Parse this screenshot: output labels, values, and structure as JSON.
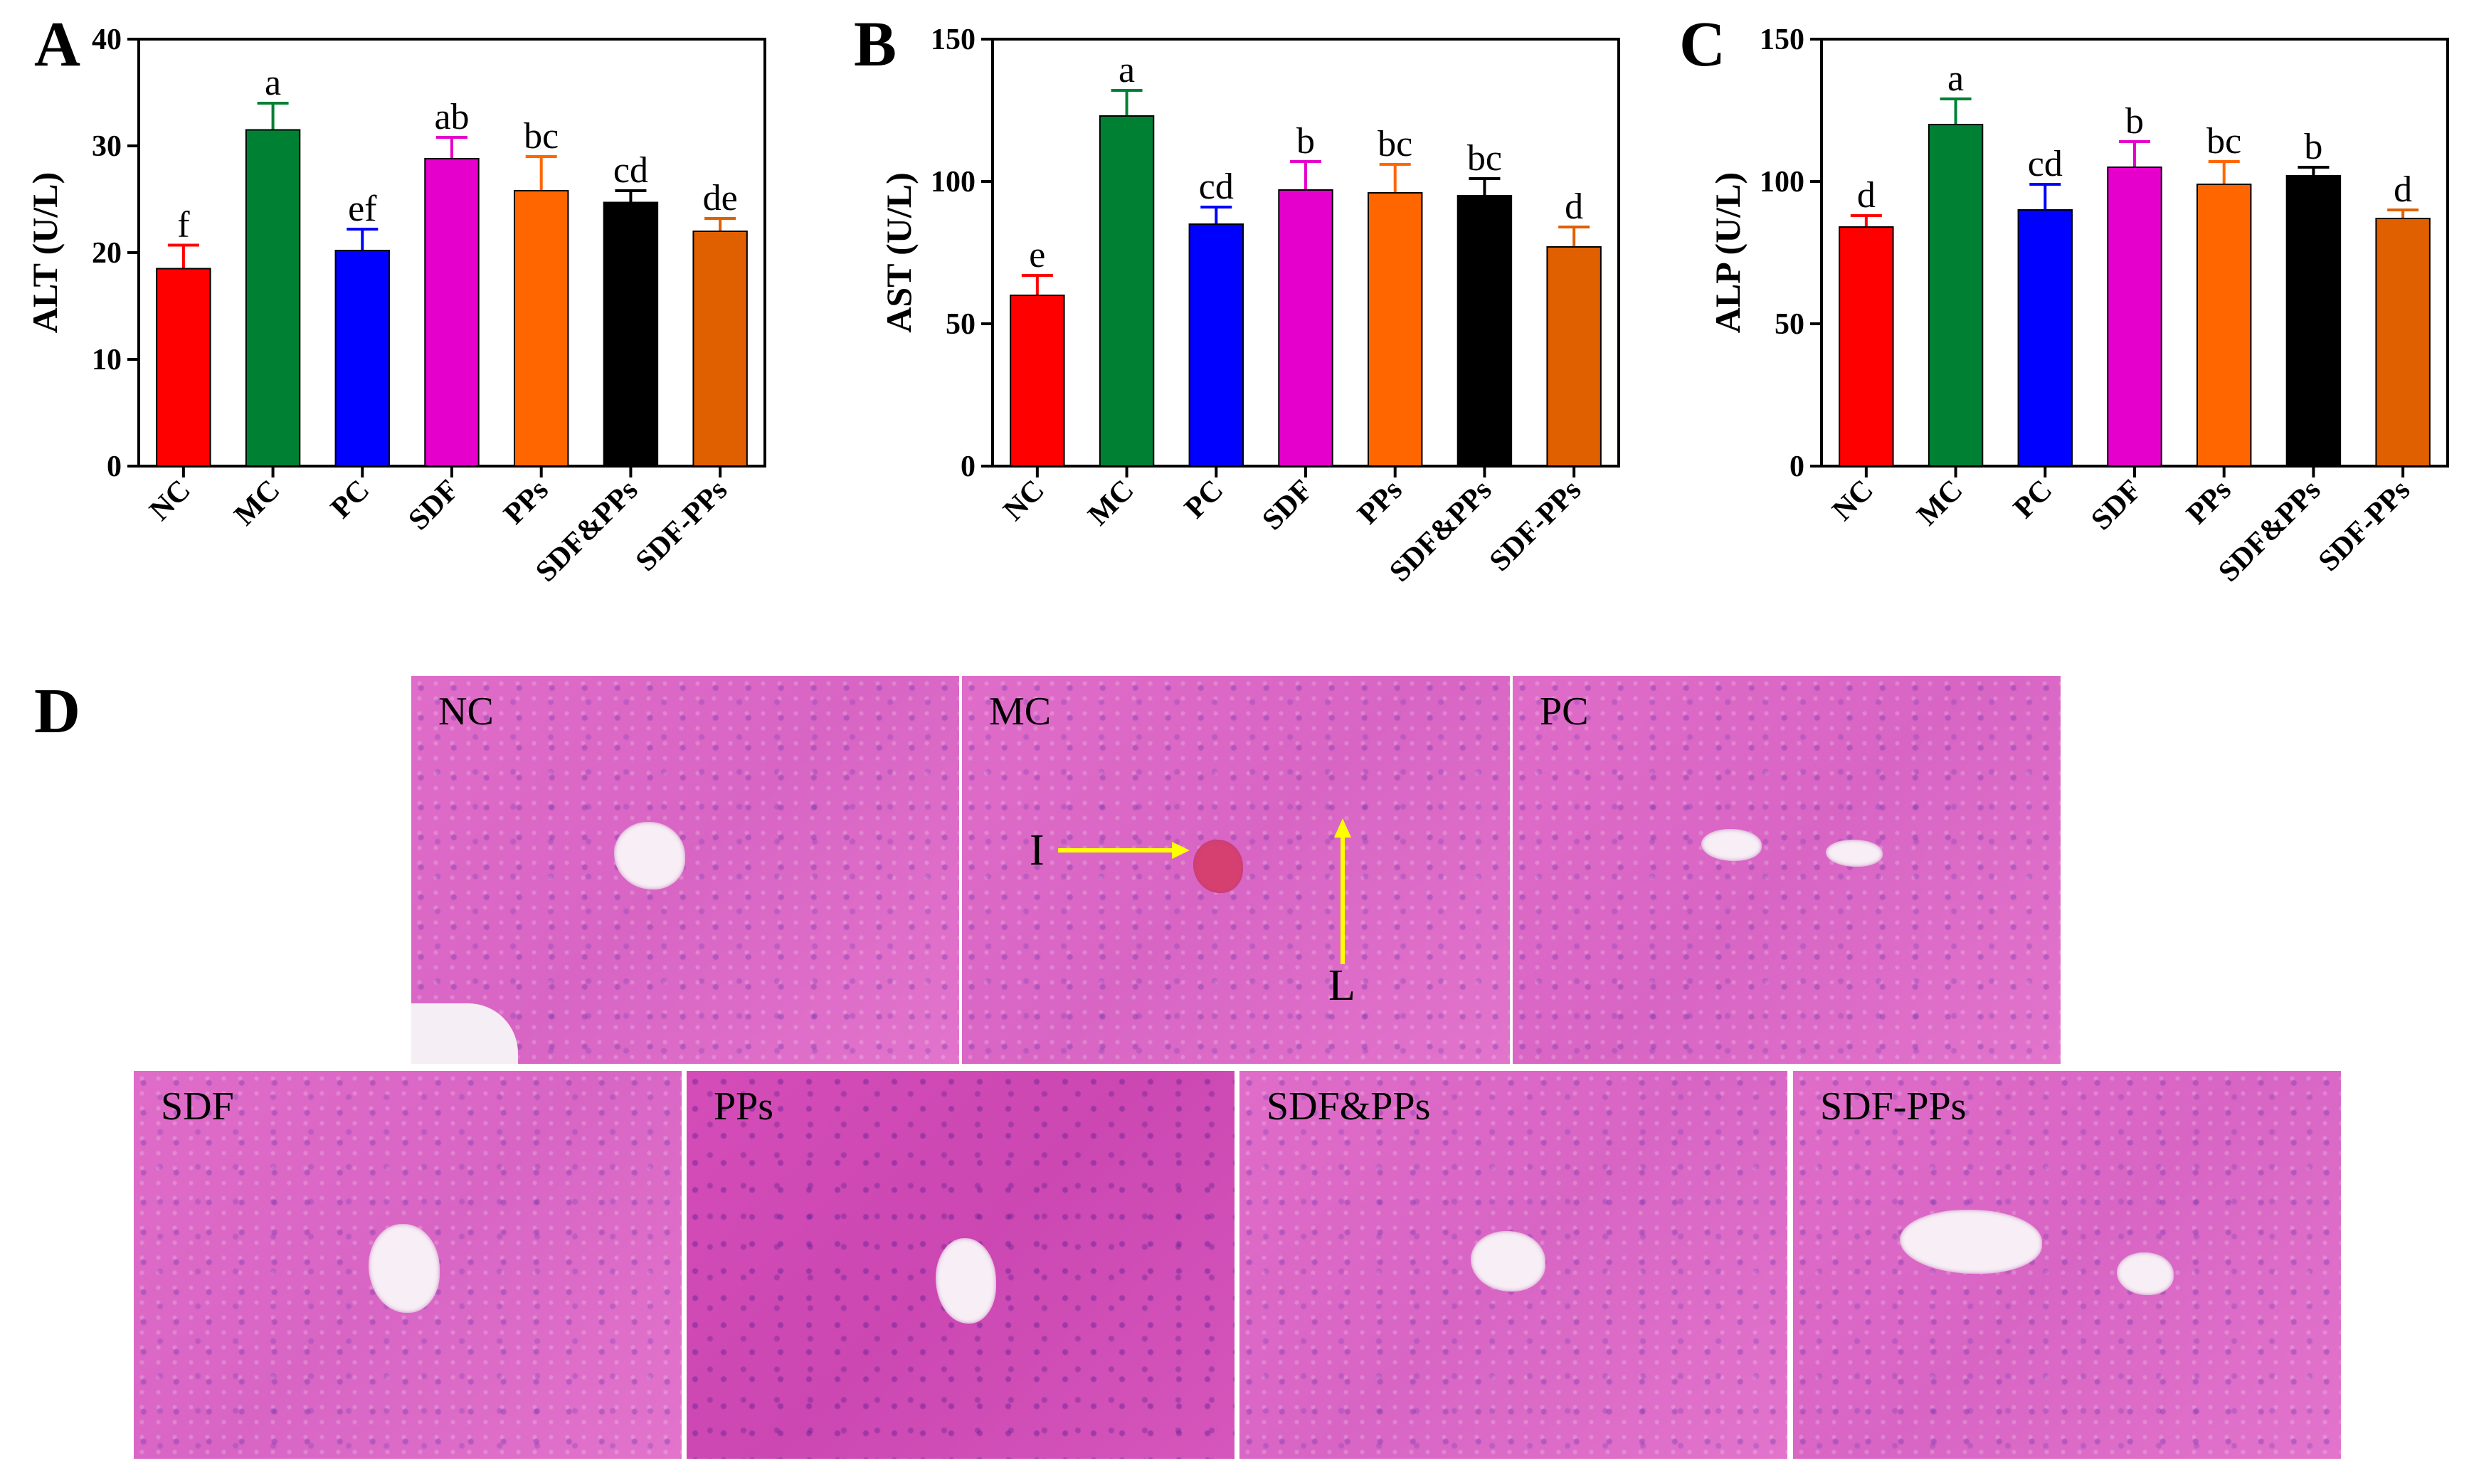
{
  "panel_letters": {
    "a": "A",
    "b": "B",
    "c": "C",
    "d": "D"
  },
  "colors": {
    "NC": "#ff0000",
    "MC": "#008033",
    "PC": "#0000ff",
    "SDF": "#e600cc",
    "PPs": "#ff6600",
    "SDF&PPs": "#000000",
    "SDF-PPs": "#e06000"
  },
  "chart_data": [
    {
      "type": "bar",
      "panel": "A",
      "categories": [
        "NC",
        "MC",
        "PC",
        "SDF",
        "PPs",
        "SDF&PPs",
        "SDF-PPs"
      ],
      "values": [
        18.5,
        31.5,
        20.2,
        28.8,
        25.8,
        24.7,
        22.0
      ],
      "errors": [
        2.2,
        2.5,
        2.0,
        2.0,
        3.2,
        1.1,
        1.2
      ],
      "letters": [
        "f",
        "a",
        "ef",
        "ab",
        "bc",
        "cd",
        "de"
      ],
      "xlabel": "",
      "ylabel": "ALT (U/L)",
      "ylim": [
        0,
        40
      ],
      "yticks": [
        0,
        10,
        20,
        30,
        40
      ],
      "grid": false
    },
    {
      "type": "bar",
      "panel": "B",
      "categories": [
        "NC",
        "MC",
        "PC",
        "SDF",
        "PPs",
        "SDF&PPs",
        "SDF-PPs"
      ],
      "values": [
        60,
        123,
        85,
        97,
        96,
        95,
        77
      ],
      "errors": [
        7,
        9,
        6,
        10,
        10,
        6,
        7
      ],
      "letters": [
        "e",
        "a",
        "cd",
        "b",
        "bc",
        "bc",
        "d"
      ],
      "xlabel": "",
      "ylabel": "AST (U/L)",
      "ylim": [
        0,
        150
      ],
      "yticks": [
        0,
        50,
        100,
        150
      ],
      "grid": false
    },
    {
      "type": "bar",
      "panel": "C",
      "categories": [
        "NC",
        "MC",
        "PC",
        "SDF",
        "PPs",
        "SDF&PPs",
        "SDF-PPs"
      ],
      "values": [
        84,
        120,
        90,
        105,
        99,
        102,
        87
      ],
      "errors": [
        4,
        9,
        9,
        9,
        8,
        3,
        3
      ],
      "letters": [
        "d",
        "a",
        "cd",
        "b",
        "bc",
        "b",
        "d"
      ],
      "xlabel": "",
      "ylabel": "ALP (U/L)",
      "ylim": [
        0,
        150
      ],
      "yticks": [
        0,
        50,
        100,
        150
      ],
      "grid": false
    }
  ],
  "histology": {
    "top": [
      "NC",
      "MC",
      "PC"
    ],
    "bottom": [
      "SDF",
      "PPs",
      "SDF&PPs",
      "SDF-PPs"
    ],
    "annotations": {
      "arrow_i": "I",
      "arrow_l": "L"
    },
    "arrow_color": "#ffff00"
  }
}
